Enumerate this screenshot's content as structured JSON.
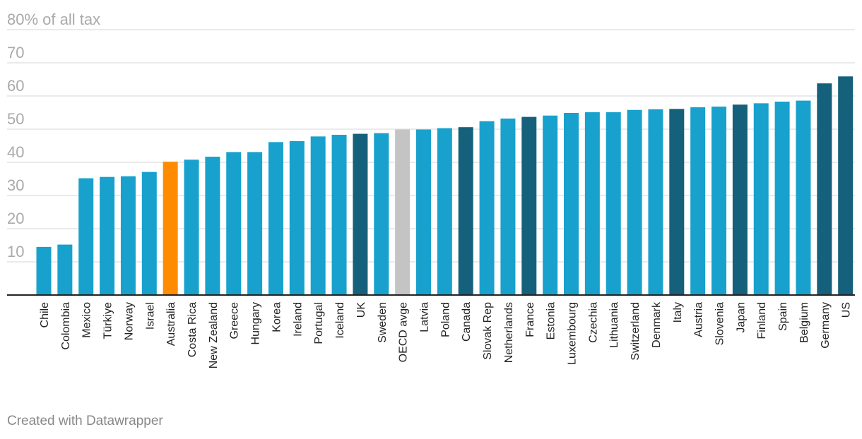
{
  "chart_data": {
    "type": "bar",
    "y_axis_unit_label": "% of all tax",
    "categories": [
      "Chile",
      "Colombia",
      "Mexico",
      "Türkiye",
      "Norway",
      "Israel",
      "Australia",
      "Costa Rica",
      "New Zealand",
      "Greece",
      "Hungary",
      "Korea",
      "Ireland",
      "Portugal",
      "Iceland",
      "UK",
      "Sweden",
      "OECD avge",
      "Latvia",
      "Poland",
      "Canada",
      "Slovak Rep",
      "Netherlands",
      "France",
      "Estonia",
      "Luxembourg",
      "Czechia",
      "Lithuania",
      "Switzerland",
      "Denmark",
      "Italy",
      "Austria",
      "Slovenia",
      "Japan",
      "Finland",
      "Spain",
      "Belgium",
      "Germany",
      "US"
    ],
    "values": [
      14.5,
      15.2,
      35.2,
      35.6,
      35.8,
      37.1,
      40.2,
      40.8,
      41.7,
      43.1,
      43.1,
      46.1,
      46.4,
      47.8,
      48.3,
      48.6,
      48.8,
      49.9,
      49.9,
      50.3,
      50.6,
      52.4,
      53.2,
      53.7,
      54.1,
      54.9,
      55.1,
      55.1,
      55.8,
      56.0,
      56.1,
      56.6,
      56.8,
      57.4,
      57.8,
      58.3,
      58.6,
      63.8,
      65.9
    ],
    "bar_colors": {
      "default": "#18a1cd",
      "highlight": "#ff8c00",
      "g7": "#15607a",
      "average": "#c4c4c4"
    },
    "bar_color_keys": [
      "default",
      "default",
      "default",
      "default",
      "default",
      "default",
      "highlight",
      "default",
      "default",
      "default",
      "default",
      "default",
      "default",
      "default",
      "default",
      "g7",
      "default",
      "average",
      "default",
      "default",
      "g7",
      "default",
      "default",
      "g7",
      "default",
      "default",
      "default",
      "default",
      "default",
      "default",
      "g7",
      "default",
      "default",
      "g7",
      "default",
      "default",
      "default",
      "g7",
      "g7"
    ],
    "y_ticks": [
      10,
      20,
      30,
      40,
      50,
      60,
      70,
      80
    ],
    "y_tick_labels": [
      "10",
      "20",
      "30",
      "40",
      "50",
      "60",
      "70",
      "80"
    ],
    "ylim": [
      0,
      80
    ],
    "grid": true
  },
  "footer": {
    "credit": "Created with Datawrapper"
  }
}
